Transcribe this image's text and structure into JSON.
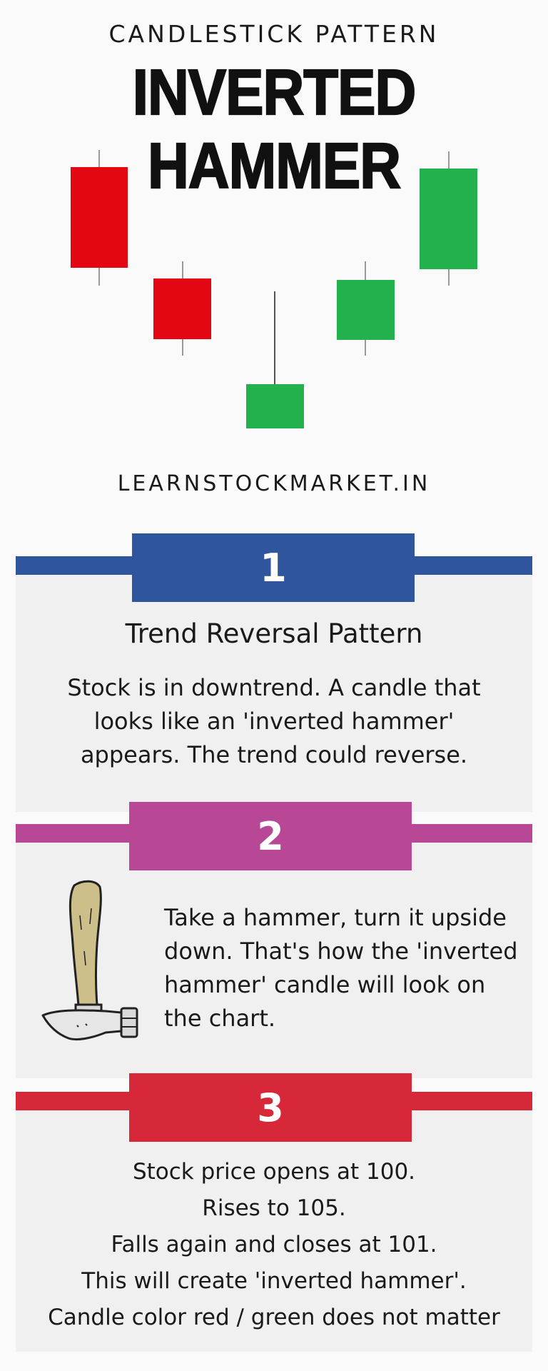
{
  "header": {
    "subtitle": "CANDLESTICK PATTERN",
    "title": "INVERTED HAMMER"
  },
  "illustration": {
    "name": "candlestick-pattern-illustration",
    "colors": {
      "bearish": "#e30613",
      "bullish": "#22b14c",
      "wick": "#9a9a9a"
    },
    "candles": [
      {
        "color": "red",
        "body": "large",
        "position": "high"
      },
      {
        "color": "red",
        "body": "small",
        "position": "mid"
      },
      {
        "color": "green",
        "body": "small",
        "position": "low",
        "long_upper_wick": true
      },
      {
        "color": "green",
        "body": "small",
        "position": "mid"
      },
      {
        "color": "green",
        "body": "large",
        "position": "high"
      }
    ]
  },
  "website": "LEARNSTOCKMARKET.IN",
  "sections": [
    {
      "number": "1",
      "color": "#2f559d",
      "heading": "Trend Reversal Pattern",
      "text": "Stock is in downtrend. A candle that looks like an 'inverted hammer' appears. The trend could reverse."
    },
    {
      "number": "2",
      "color": "#b84796",
      "icon": "hammer-icon",
      "text": "Take a hammer, turn it upside down. That's how the 'inverted hammer' candle will look on the chart."
    },
    {
      "number": "3",
      "color": "#d62839",
      "lines": [
        "Stock price opens at 100.",
        "Rises to 105.",
        "Falls again and closes at 101.",
        "This will create 'inverted hammer'.",
        "Candle color red / green does not matter"
      ]
    }
  ]
}
